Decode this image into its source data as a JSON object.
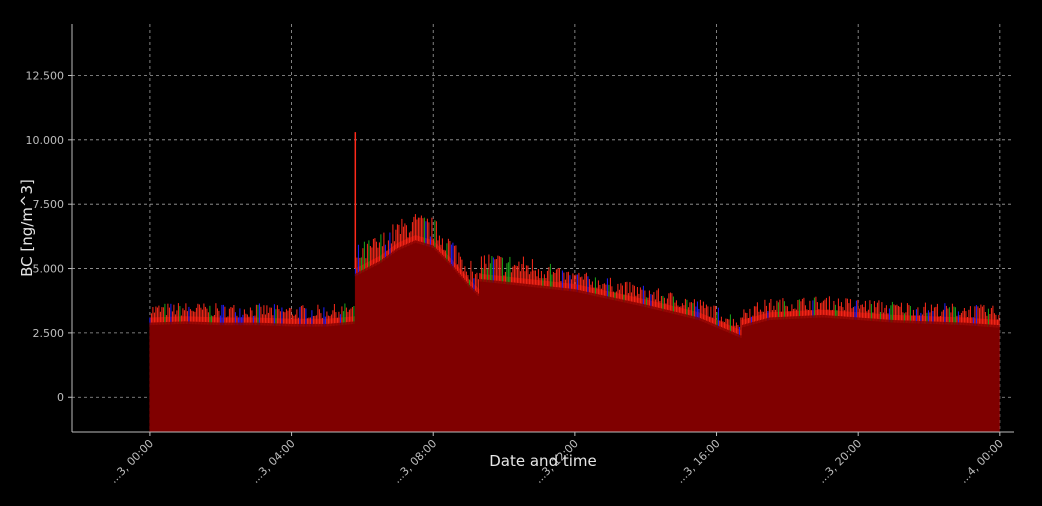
{
  "chart_data": {
    "type": "area",
    "title": "",
    "xlabel": "Date and time",
    "ylabel": "BC  [ng/m^3]",
    "grid": true,
    "x_ticks": [
      "...3, 00:00",
      "...3, 04:00",
      "...3, 08:00",
      "...3, 12:00",
      "...3, 16:00",
      "...3, 20:00",
      "...4, 00:00"
    ],
    "x_tick_hours": [
      0,
      4,
      8,
      12,
      16,
      20,
      24
    ],
    "xlim_hours": [
      -2.2,
      24.4
    ],
    "y_ticks": [
      "0",
      "2.500",
      "5.000",
      "7.500",
      "10.000",
      "12.500"
    ],
    "y_tick_values": [
      0,
      2500,
      5000,
      7500,
      10000,
      12500
    ],
    "ylim": [
      -1350,
      14500
    ],
    "series": [
      {
        "color": "#800000",
        "x_hours": [
          0,
          1,
          2,
          3,
          4,
          5,
          5.8,
          5.8,
          6.5,
          7,
          7.5,
          8,
          8.5,
          9,
          9.3,
          9.3,
          10,
          12,
          14,
          15.5,
          16.7,
          16.7,
          17.5,
          19,
          21,
          23,
          24
        ],
        "values": [
          3100,
          3150,
          3100,
          3100,
          3050,
          3050,
          3150,
          5000,
          5500,
          6000,
          6300,
          6100,
          5400,
          4600,
          4200,
          4800,
          4700,
          4400,
          3800,
          3300,
          2600,
          3000,
          3300,
          3400,
          3200,
          3100,
          3000
        ]
      }
    ],
    "spike": {
      "x_hours": 5.8,
      "value": 10300
    },
    "colors": {
      "background": "#000000",
      "area": "#800000",
      "noise_red": "#ff2a1a",
      "noise_green": "#1aa81a",
      "noise_blue": "#2020ff",
      "grid": "#bdbdbd",
      "axis": "#bdbdbd"
    }
  }
}
